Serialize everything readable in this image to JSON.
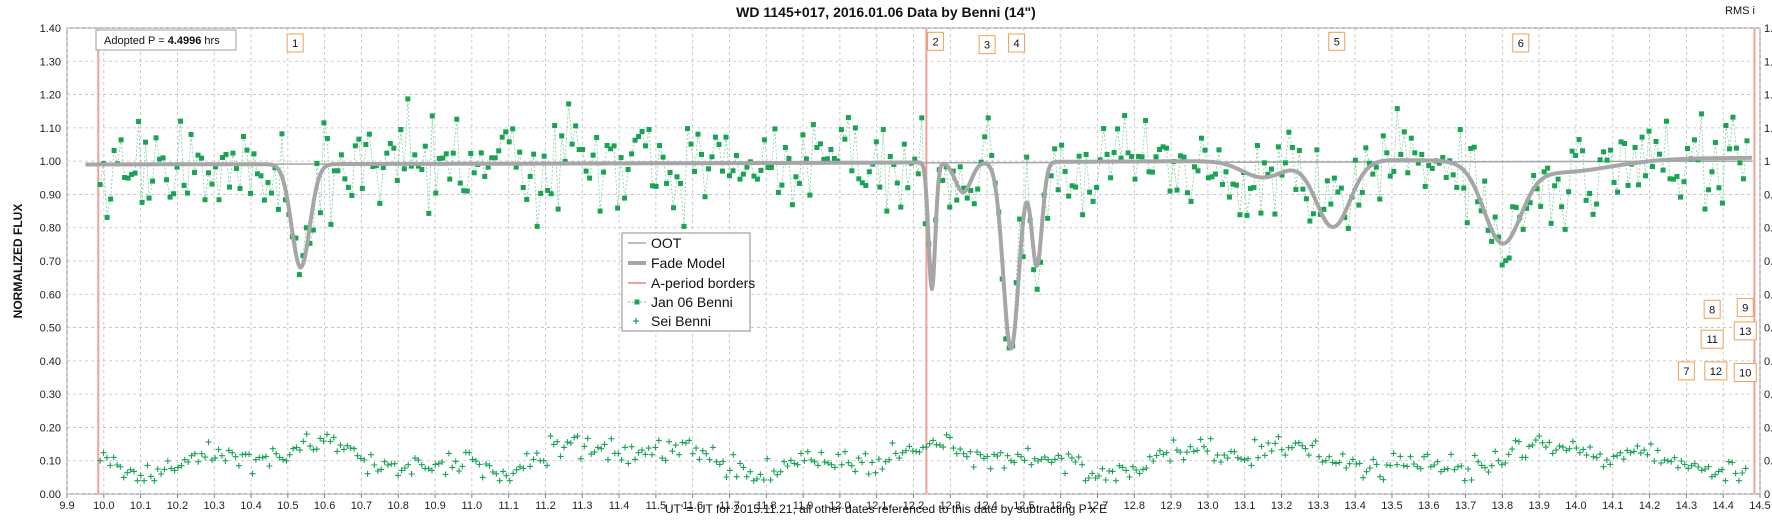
{
  "chart_data": {
    "type": "scatter",
    "title": "WD 1145+017, 2016.01.06 Data by Benni (14\")",
    "xlabel": "UT' = UT for 2015.11.21, all other dates referenced to this date by subtracting P x E",
    "ylabel": "NORMALIZED FLUX",
    "y2label": "RMS i",
    "xlim": [
      9.9,
      14.5
    ],
    "ylim": [
      0.0,
      1.4
    ],
    "xticks": [
      "9.9",
      "10.0",
      "10.1",
      "10.2",
      "10.3",
      "10.4",
      "10.5",
      "10.6",
      "10.7",
      "10.8",
      "10.9",
      "11.0",
      "11.1",
      "11.2",
      "11.3",
      "11.4",
      "11.5",
      "11.6",
      "11.7",
      "11.8",
      "11.9",
      "12.0",
      "12.1",
      "12.2",
      "12.3",
      "12.4",
      "12.5",
      "12.6",
      "12.7",
      "12.8",
      "12.9",
      "13.0",
      "13.1",
      "13.2",
      "13.3",
      "13.4",
      "13.5",
      "13.6",
      "13.7",
      "13.8",
      "13.9",
      "14.0",
      "14.1",
      "14.2",
      "14.3",
      "14.4",
      "14.5"
    ],
    "yticks": [
      "0.00",
      "0.10",
      "0.20",
      "0.30",
      "0.40",
      "0.50",
      "0.60",
      "0.70",
      "0.80",
      "0.90",
      "1.00",
      "1.10",
      "1.20",
      "1.30",
      "1.40"
    ],
    "y2ticks": [
      "0",
      "0.1",
      "0.2",
      "0.3",
      "0.4",
      "0.5",
      "0.6",
      "0.7",
      "0.8",
      "0.9",
      "1",
      "1.1",
      "1.2",
      "1.3",
      "1.4"
    ],
    "grid": true,
    "legend_position": "center-left",
    "period_box": {
      "prefix": "Adopted P = ",
      "value": "4.4996",
      "suffix": " hrs"
    },
    "legend": [
      "OOT",
      "Fade Model",
      "A-period borders",
      "Jan 06 Benni",
      "Sei Benni"
    ],
    "colors": {
      "oot": "#a6a6a6",
      "fade": "#a6a6a6",
      "border": "#f4a09a",
      "benni": "#1aa355",
      "sei": "#1aa355",
      "label_box": "#f0a055"
    },
    "period_borders": [
      9.985,
      12.235,
      14.485
    ],
    "oot": {
      "x": [
        9.95,
        14.48
      ],
      "y": [
        0.99,
        1.0
      ]
    },
    "fade_model": {
      "baseline": [
        [
          9.95,
          0.99
        ],
        [
          11.0,
          0.992
        ],
        [
          12.0,
          0.995
        ],
        [
          13.0,
          1.0
        ],
        [
          14.48,
          1.01
        ]
      ],
      "dips": [
        {
          "center": 10.535,
          "depth": 0.31,
          "width": 0.035
        },
        {
          "center": 12.25,
          "depth": 0.38,
          "width": 0.013
        },
        {
          "center": 12.335,
          "depth": 0.09,
          "width": 0.03
        },
        {
          "center": 12.465,
          "depth": 0.56,
          "width": 0.03
        },
        {
          "center": 12.535,
          "depth": 0.31,
          "width": 0.02
        },
        {
          "center": 13.15,
          "depth": 0.05,
          "width": 0.08
        },
        {
          "center": 13.34,
          "depth": 0.2,
          "width": 0.065
        },
        {
          "center": 13.8,
          "depth": 0.23,
          "width": 0.07
        },
        {
          "center": 13.95,
          "depth": 0.04,
          "width": 0.2
        }
      ]
    },
    "labels": [
      {
        "text": "1",
        "x": 10.52,
        "y": 1.355
      },
      {
        "text": "2",
        "x": 12.26,
        "y": 1.36
      },
      {
        "text": "3",
        "x": 12.4,
        "y": 1.35
      },
      {
        "text": "4",
        "x": 12.48,
        "y": 1.355
      },
      {
        "text": "5",
        "x": 13.35,
        "y": 1.36
      },
      {
        "text": "6",
        "x": 13.85,
        "y": 1.355
      },
      {
        "text": "7",
        "x": 14.3,
        "y": 0.37
      },
      {
        "text": "8",
        "x": 14.37,
        "y": 0.555
      },
      {
        "text": "9",
        "x": 14.46,
        "y": 0.56
      },
      {
        "text": "10",
        "x": 14.46,
        "y": 0.365
      },
      {
        "text": "11",
        "x": 14.37,
        "y": 0.465
      },
      {
        "text": "12",
        "x": 14.38,
        "y": 0.37
      },
      {
        "text": "13",
        "x": 14.46,
        "y": 0.49
      }
    ],
    "series": [
      {
        "name": "Jan 06 Benni",
        "marker": "square",
        "x": [],
        "y": []
      },
      {
        "name": "Sei Benni",
        "marker": "plus",
        "x": [],
        "y": []
      }
    ]
  }
}
